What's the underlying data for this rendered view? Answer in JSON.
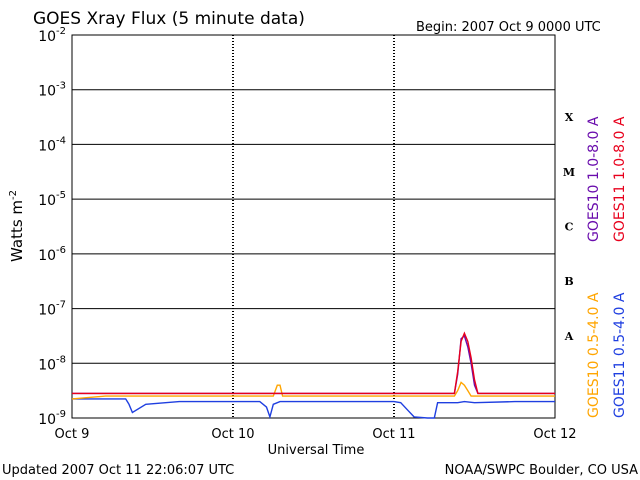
{
  "chart_data": {
    "type": "line",
    "title": "GOES Xray Flux (5 minute data)",
    "begin_label": "Begin:  2007 Oct 9 0000 UTC",
    "ylabel": "Watts m",
    "ylabel_sup": "-2",
    "xlabel": "Universal Time",
    "y_scale": "log",
    "ylim": [
      -9,
      -2
    ],
    "y_ticks": [
      {
        "base": "10",
        "exp": "-2",
        "value": -2
      },
      {
        "base": "10",
        "exp": "-3",
        "value": -3
      },
      {
        "base": "10",
        "exp": "-4",
        "value": -4
      },
      {
        "base": "10",
        "exp": "-5",
        "value": -5
      },
      {
        "base": "10",
        "exp": "-6",
        "value": -6
      },
      {
        "base": "10",
        "exp": "-7",
        "value": -7
      },
      {
        "base": "10",
        "exp": "-8",
        "value": -8
      },
      {
        "base": "10",
        "exp": "-9",
        "value": -9
      }
    ],
    "xlim": [
      0,
      72
    ],
    "x_unit": "hours since 2007 Oct 9 0000 UTC",
    "x_ticks": [
      {
        "label": "Oct 9",
        "value": 0
      },
      {
        "label": "Oct 10",
        "value": 24
      },
      {
        "label": "Oct 11",
        "value": 48
      },
      {
        "label": "Oct 12",
        "value": 72
      }
    ],
    "flare_classes": [
      {
        "label": "X",
        "value": -3.5
      },
      {
        "label": "M",
        "value": -4.5
      },
      {
        "label": "C",
        "value": -5.5
      },
      {
        "label": "B",
        "value": -6.5
      },
      {
        "label": "A",
        "value": -7.5
      }
    ],
    "series": [
      {
        "name": "GOES10 1.0-8.0 A",
        "color": "#6a0dad",
        "points": [
          [
            0,
            -8.55
          ],
          [
            20,
            -8.55
          ],
          [
            40,
            -8.55
          ],
          [
            57,
            -8.55
          ],
          [
            57.5,
            -8.2
          ],
          [
            58,
            -7.55
          ],
          [
            58.5,
            -7.5
          ],
          [
            59,
            -7.7
          ],
          [
            59.5,
            -8.0
          ],
          [
            60,
            -8.4
          ],
          [
            60.5,
            -8.55
          ],
          [
            72,
            -8.55
          ]
        ]
      },
      {
        "name": "GOES11 1.0-8.0 A",
        "color": "#e8001c",
        "points": [
          [
            0,
            -8.55
          ],
          [
            20,
            -8.55
          ],
          [
            40,
            -8.55
          ],
          [
            57,
            -8.55
          ],
          [
            57.5,
            -8.15
          ],
          [
            58,
            -7.6
          ],
          [
            58.5,
            -7.45
          ],
          [
            59,
            -7.6
          ],
          [
            59.5,
            -7.9
          ],
          [
            60,
            -8.3
          ],
          [
            60.5,
            -8.55
          ],
          [
            72,
            -8.55
          ]
        ]
      },
      {
        "name": "GOES10 0.5-4.0 A",
        "color": "#ffa500",
        "points": [
          [
            0,
            -8.65
          ],
          [
            5,
            -8.6
          ],
          [
            12,
            -8.6
          ],
          [
            24,
            -8.6
          ],
          [
            30,
            -8.6
          ],
          [
            30.6,
            -8.4
          ],
          [
            31,
            -8.4
          ],
          [
            31.4,
            -8.6
          ],
          [
            48,
            -8.6
          ],
          [
            57,
            -8.6
          ],
          [
            57.5,
            -8.5
          ],
          [
            58,
            -8.35
          ],
          [
            58.5,
            -8.4
          ],
          [
            59,
            -8.5
          ],
          [
            59.5,
            -8.6
          ],
          [
            72,
            -8.6
          ]
        ]
      },
      {
        "name": "GOES11 0.5-4.0 A",
        "color": "#1f3fe0",
        "points": [
          [
            0,
            -8.65
          ],
          [
            8,
            -8.65
          ],
          [
            8.5,
            -8.75
          ],
          [
            9,
            -8.9
          ],
          [
            11,
            -8.75
          ],
          [
            16,
            -8.7
          ],
          [
            24,
            -8.7
          ],
          [
            28,
            -8.7
          ],
          [
            29,
            -8.8
          ],
          [
            29.5,
            -8.98
          ],
          [
            30,
            -8.75
          ],
          [
            31,
            -8.7
          ],
          [
            40,
            -8.7
          ],
          [
            48,
            -8.7
          ],
          [
            49,
            -8.72
          ],
          [
            50,
            -8.85
          ],
          [
            51,
            -8.98
          ],
          [
            53,
            -9.0
          ],
          [
            54,
            -9.0
          ],
          [
            54.5,
            -8.72
          ],
          [
            57.5,
            -8.72
          ],
          [
            58.5,
            -8.7
          ],
          [
            60,
            -8.72
          ],
          [
            66,
            -8.7
          ],
          [
            72,
            -8.7
          ]
        ]
      }
    ]
  },
  "footer": {
    "updated": "Updated 2007 Oct 11 22:06:07 UTC",
    "source": "NOAA/SWPC Boulder, CO USA"
  }
}
